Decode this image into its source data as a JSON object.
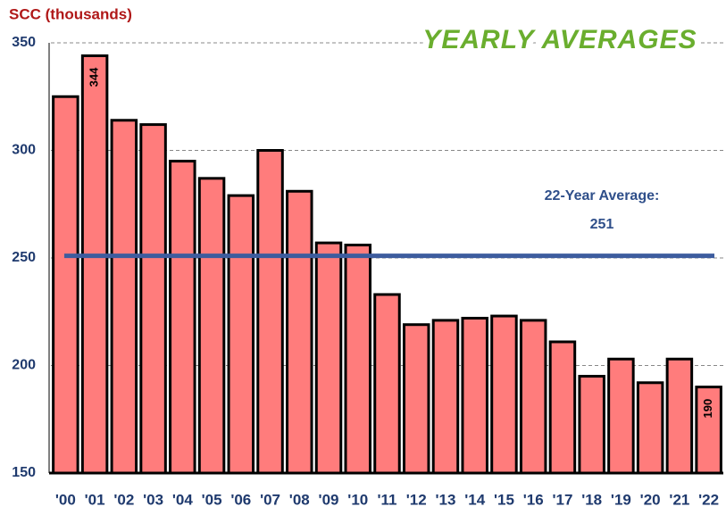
{
  "chart_data": {
    "type": "bar",
    "title": "YEARLY AVERAGES",
    "y_label": "SCC (thousands)",
    "categories": [
      "'00",
      "'01",
      "'02",
      "'03",
      "'04",
      "'05",
      "'06",
      "'07",
      "'08",
      "'09",
      "'10",
      "'11",
      "'12",
      "'13",
      "'14",
      "'15",
      "'16",
      "'17",
      "'18",
      "'19",
      "'20",
      "'21",
      "'22"
    ],
    "values": [
      325,
      344,
      314,
      312,
      295,
      287,
      279,
      300,
      281,
      257,
      256,
      233,
      219,
      221,
      222,
      223,
      221,
      211,
      195,
      203,
      192,
      203,
      190
    ],
    "value_labels": [
      null,
      "344",
      null,
      null,
      null,
      null,
      null,
      null,
      null,
      null,
      null,
      null,
      null,
      null,
      null,
      null,
      null,
      null,
      null,
      null,
      null,
      null,
      "190"
    ],
    "color": "#ff7c7c",
    "ylim": [
      150,
      350
    ],
    "yticks": [
      150,
      200,
      250,
      300,
      350
    ],
    "grid": true,
    "reference_line": {
      "label": "22-Year Average:",
      "value": 251,
      "color": "#3d5c9e"
    }
  }
}
